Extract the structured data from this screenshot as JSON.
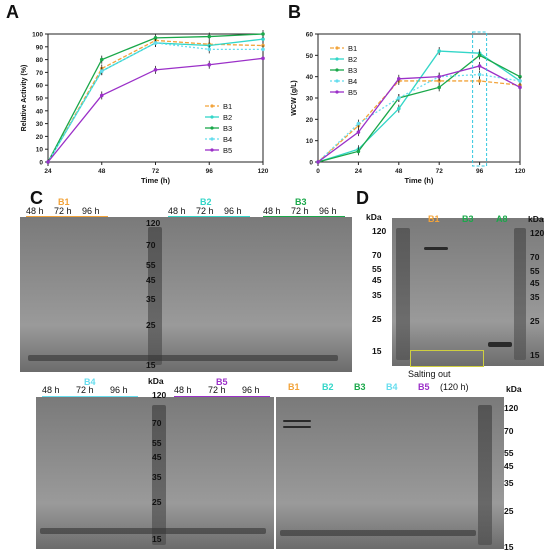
{
  "panels": {
    "A": "A",
    "B": "B",
    "C": "C",
    "D": "D"
  },
  "colors": {
    "B1": "#f2a33a",
    "B2": "#33d6c8",
    "B3": "#1aa84a",
    "B4": "#66ddee",
    "B5": "#9b30c8"
  },
  "chartA": {
    "chart_data": {
      "type": "line",
      "x": [
        24,
        48,
        72,
        96,
        120
      ],
      "xlabel": "Time (h)",
      "ylabel": "Relative Activity (%)",
      "xticks": [
        "24",
        "48",
        "72",
        "96",
        "120"
      ],
      "yticks": [
        "0",
        "10",
        "20",
        "30",
        "40",
        "50",
        "60",
        "70",
        "80",
        "90",
        "100"
      ],
      "ylim": [
        0,
        100
      ],
      "series": [
        {
          "name": "B1",
          "values": [
            0,
            73,
            95,
            92,
            91
          ]
        },
        {
          "name": "B2",
          "values": [
            0,
            71,
            93,
            91,
            96
          ]
        },
        {
          "name": "B3",
          "values": [
            0,
            80,
            97,
            98,
            100
          ]
        },
        {
          "name": "B4",
          "values": [
            0,
            71,
            93,
            88,
            88
          ]
        },
        {
          "name": "B5",
          "values": [
            0,
            52,
            72,
            76,
            81
          ]
        }
      ],
      "legend": "right"
    }
  },
  "chartB": {
    "chart_data": {
      "type": "line",
      "x": [
        0,
        24,
        48,
        72,
        96,
        120
      ],
      "xlabel": "Time (h)",
      "ylabel": "WCW (g/L)",
      "xticks": [
        "0",
        "24",
        "48",
        "72",
        "96",
        "120"
      ],
      "yticks": [
        "0",
        "10",
        "20",
        "30",
        "40",
        "50",
        "60"
      ],
      "ylim": [
        0,
        60
      ],
      "series": [
        {
          "name": "B1",
          "values": [
            0,
            17,
            38,
            38,
            38,
            36
          ]
        },
        {
          "name": "B2",
          "values": [
            0,
            6,
            25,
            52,
            51,
            38
          ]
        },
        {
          "name": "B3",
          "values": [
            0,
            5,
            30,
            35,
            50,
            40
          ]
        },
        {
          "name": "B4",
          "values": [
            0,
            18,
            30,
            40,
            41,
            38
          ]
        },
        {
          "name": "B5",
          "values": [
            0,
            14,
            39,
            40,
            45,
            35
          ]
        }
      ],
      "legend": "top-left"
    }
  },
  "gelC": {
    "top_groups": [
      {
        "name": "B1",
        "times": [
          "48 h",
          "72 h",
          "96 h"
        ]
      },
      {
        "name": "B2",
        "times": [
          "48 h",
          "72 h",
          "96 h"
        ]
      },
      {
        "name": "B3",
        "times": [
          "48 h",
          "72 h",
          "96 h"
        ]
      }
    ],
    "bottom_groups": [
      {
        "name": "B4",
        "times": [
          "48 h",
          "72 h",
          "96 h"
        ]
      },
      {
        "name": "B5",
        "times": [
          "48 h",
          "72 h",
          "96 h"
        ]
      }
    ],
    "kda": "kDa",
    "marker": [
      "120",
      "70",
      "55",
      "45",
      "35",
      "25",
      "15"
    ]
  },
  "gelD": {
    "kda": "kDa",
    "marker": [
      "120",
      "70",
      "55",
      "45",
      "35",
      "25",
      "15"
    ],
    "lanes": [
      "B1",
      "B3",
      "A8"
    ]
  },
  "gelSalt": {
    "lanes": [
      "B1",
      "B2",
      "B3",
      "B4",
      "B5"
    ],
    "note": "Salting out",
    "time": "(120 h)",
    "kda": "kDa",
    "marker": [
      "120",
      "70",
      "55",
      "45",
      "35",
      "25",
      "15"
    ]
  }
}
